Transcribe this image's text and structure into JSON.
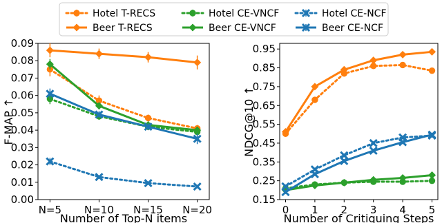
{
  "chart_data": [
    {
      "type": "line",
      "xlabel": "Number of Top-N items",
      "ylabel": "F-MAP ↑",
      "categories": [
        "N=5",
        "N=10",
        "N=15",
        "N=20"
      ],
      "ylim": [
        0.0,
        0.09
      ],
      "yticks": [
        0.0,
        0.01,
        0.02,
        0.03,
        0.04,
        0.05,
        0.06,
        0.07,
        0.08,
        0.09
      ],
      "ytick_labels": [
        "0.00",
        "0.01",
        "0.02",
        "0.03",
        "0.04",
        "0.05",
        "0.06",
        "0.07",
        "0.08",
        "0.09"
      ],
      "grid": false,
      "series": [
        {
          "name": "Hotel T-RECS",
          "color": "#ff7f0e",
          "style": "dotted",
          "marker": "circle",
          "values": [
            0.075,
            0.057,
            0.047,
            0.041
          ],
          "errors": [
            0.004,
            0.003,
            0.002,
            0.002
          ]
        },
        {
          "name": "Beer T-RECS",
          "color": "#ff7f0e",
          "style": "solid",
          "marker": "diamond",
          "values": [
            0.086,
            0.084,
            0.082,
            0.079
          ],
          "errors": [
            0.004,
            0.003,
            0.003,
            0.004
          ]
        },
        {
          "name": "Hotel CE-VNCF",
          "color": "#2ca02c",
          "style": "dotted",
          "marker": "circle",
          "values": [
            0.058,
            0.048,
            0.042,
            0.039
          ],
          "errors": [
            0.003,
            0.002,
            0.002,
            0.002
          ]
        },
        {
          "name": "Beer CE-VNCF",
          "color": "#2ca02c",
          "style": "solid",
          "marker": "diamond",
          "values": [
            0.078,
            0.054,
            0.043,
            0.04
          ],
          "errors": [
            0.003,
            0.002,
            0.002,
            0.002
          ]
        },
        {
          "name": "Hotel CE-NCF",
          "color": "#1f77b4",
          "style": "dotted",
          "marker": "x",
          "values": [
            0.022,
            0.013,
            0.0095,
            0.0075
          ],
          "errors": [
            0.002,
            0.001,
            0.001,
            0.001
          ]
        },
        {
          "name": "Beer CE-NCF",
          "color": "#1f77b4",
          "style": "solid",
          "marker": "x",
          "values": [
            0.061,
            0.049,
            0.042,
            0.035
          ],
          "errors": [
            0.003,
            0.002,
            0.002,
            0.003
          ]
        }
      ]
    },
    {
      "type": "line",
      "xlabel": "Number of Critiquing Steps",
      "ylabel": "NDCG@10 ↑",
      "x": [
        0,
        1,
        2,
        3,
        4,
        5
      ],
      "xlim": [
        -0.2,
        5.2
      ],
      "ylim": [
        0.15,
        0.98
      ],
      "yticks": [
        0.15,
        0.25,
        0.35,
        0.45,
        0.55,
        0.65,
        0.75,
        0.85,
        0.95
      ],
      "ytick_labels": [
        "0.15",
        "0.25",
        "0.35",
        "0.45",
        "0.55",
        "0.65",
        "0.75",
        "0.85",
        "0.95"
      ],
      "xtick_labels": [
        "0",
        "1",
        "2",
        "3",
        "4",
        "5"
      ],
      "grid": false,
      "series": [
        {
          "name": "Hotel T-RECS",
          "color": "#ff7f0e",
          "style": "dotted",
          "marker": "circle",
          "values": [
            0.5,
            0.68,
            0.82,
            0.86,
            0.865,
            0.835
          ],
          "errors": [
            0.01,
            0.01,
            0.01,
            0.01,
            0.01,
            0.015
          ]
        },
        {
          "name": "Beer T-RECS",
          "color": "#ff7f0e",
          "style": "solid",
          "marker": "diamond",
          "values": [
            0.51,
            0.75,
            0.84,
            0.89,
            0.92,
            0.935
          ],
          "errors": [
            0.01,
            0.01,
            0.01,
            0.01,
            0.01,
            0.01
          ]
        },
        {
          "name": "Hotel CE-VNCF",
          "color": "#2ca02c",
          "style": "dotted",
          "marker": "circle",
          "values": [
            0.21,
            0.23,
            0.24,
            0.245,
            0.245,
            0.25
          ],
          "errors": [
            0.01,
            0.01,
            0.01,
            0.01,
            0.01,
            0.01
          ]
        },
        {
          "name": "Beer CE-VNCF",
          "color": "#2ca02c",
          "style": "solid",
          "marker": "diamond",
          "values": [
            0.2,
            0.225,
            0.24,
            0.255,
            0.265,
            0.28
          ],
          "errors": [
            0.01,
            0.01,
            0.01,
            0.01,
            0.01,
            0.01
          ]
        },
        {
          "name": "Hotel CE-NCF",
          "color": "#1f77b4",
          "style": "dotted",
          "marker": "x",
          "values": [
            0.22,
            0.31,
            0.385,
            0.45,
            0.48,
            0.49
          ],
          "errors": [
            0.01,
            0.01,
            0.01,
            0.01,
            0.01,
            0.01
          ]
        },
        {
          "name": "Beer CE-NCF",
          "color": "#1f77b4",
          "style": "solid",
          "marker": "x",
          "values": [
            0.19,
            0.285,
            0.355,
            0.41,
            0.455,
            0.495
          ],
          "errors": [
            0.01,
            0.01,
            0.01,
            0.01,
            0.01,
            0.01
          ]
        }
      ]
    }
  ],
  "legend": {
    "placement": "top-center",
    "columns": 3
  }
}
